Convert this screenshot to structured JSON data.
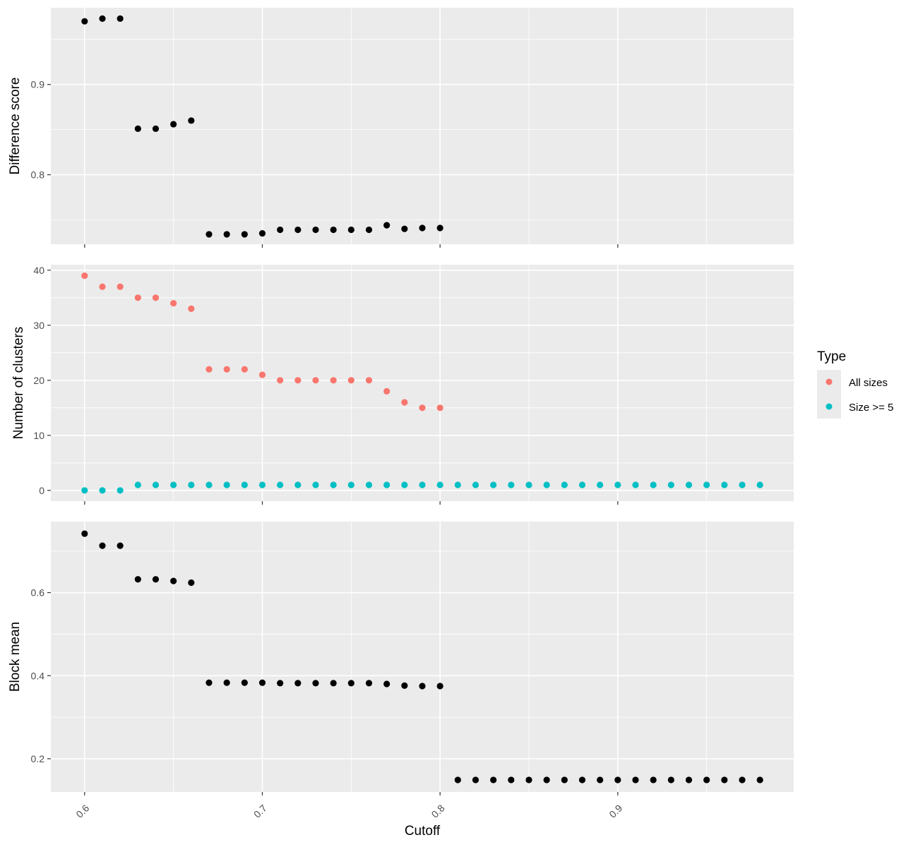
{
  "chart_data": {
    "type": "scatter",
    "x_label": "Cutoff",
    "x_ticks": [
      "0.6",
      "0.7",
      "0.8",
      "0.9"
    ],
    "xlim": [
      0.581,
      0.999
    ],
    "panels": [
      {
        "id": "difference",
        "ylabel": "Difference score",
        "ylim": [
          0.723,
          0.985
        ],
        "yticks": [
          "0.8",
          "0.9"
        ],
        "series": [
          {
            "color": "#000000",
            "points": [
              [
                0.6,
                0.97
              ],
              [
                0.61,
                0.973
              ],
              [
                0.62,
                0.973
              ],
              [
                0.63,
                0.851
              ],
              [
                0.64,
                0.851
              ],
              [
                0.65,
                0.856
              ],
              [
                0.66,
                0.86
              ],
              [
                0.67,
                0.734
              ],
              [
                0.68,
                0.734
              ],
              [
                0.69,
                0.734
              ],
              [
                0.7,
                0.735
              ],
              [
                0.71,
                0.739
              ],
              [
                0.72,
                0.739
              ],
              [
                0.73,
                0.739
              ],
              [
                0.74,
                0.739
              ],
              [
                0.75,
                0.739
              ],
              [
                0.76,
                0.739
              ],
              [
                0.77,
                0.744
              ],
              [
                0.78,
                0.74
              ],
              [
                0.79,
                0.741
              ],
              [
                0.8,
                0.741
              ]
            ]
          }
        ]
      },
      {
        "id": "clusters",
        "ylabel": "Number of clusters",
        "ylim": [
          -1.95,
          41.0
        ],
        "yticks": [
          "0",
          "10",
          "20",
          "30",
          "40"
        ],
        "series": [
          {
            "name": "All sizes",
            "color": "#F8766D",
            "points": [
              [
                0.6,
                39
              ],
              [
                0.61,
                37
              ],
              [
                0.62,
                37
              ],
              [
                0.63,
                35
              ],
              [
                0.64,
                35
              ],
              [
                0.65,
                34
              ],
              [
                0.66,
                33
              ],
              [
                0.67,
                22
              ],
              [
                0.68,
                22
              ],
              [
                0.69,
                22
              ],
              [
                0.7,
                21
              ],
              [
                0.71,
                20
              ],
              [
                0.72,
                20
              ],
              [
                0.73,
                20
              ],
              [
                0.74,
                20
              ],
              [
                0.75,
                20
              ],
              [
                0.76,
                20
              ],
              [
                0.77,
                18
              ],
              [
                0.78,
                16
              ],
              [
                0.79,
                15
              ],
              [
                0.8,
                15
              ]
            ]
          },
          {
            "name": "Size >= 5",
            "color": "#00BFC4",
            "points": [
              [
                0.6,
                0
              ],
              [
                0.61,
                0
              ],
              [
                0.62,
                0
              ],
              [
                0.63,
                1
              ],
              [
                0.64,
                1
              ],
              [
                0.65,
                1
              ],
              [
                0.66,
                1
              ],
              [
                0.67,
                1
              ],
              [
                0.68,
                1
              ],
              [
                0.69,
                1
              ],
              [
                0.7,
                1
              ],
              [
                0.71,
                1
              ],
              [
                0.72,
                1
              ],
              [
                0.73,
                1
              ],
              [
                0.74,
                1
              ],
              [
                0.75,
                1
              ],
              [
                0.76,
                1
              ],
              [
                0.77,
                1
              ],
              [
                0.78,
                1
              ],
              [
                0.79,
                1
              ],
              [
                0.8,
                1
              ],
              [
                0.81,
                1
              ],
              [
                0.82,
                1
              ],
              [
                0.83,
                1
              ],
              [
                0.84,
                1
              ],
              [
                0.85,
                1
              ],
              [
                0.86,
                1
              ],
              [
                0.87,
                1
              ],
              [
                0.88,
                1
              ],
              [
                0.89,
                1
              ],
              [
                0.9,
                1
              ],
              [
                0.91,
                1
              ],
              [
                0.92,
                1
              ],
              [
                0.93,
                1
              ],
              [
                0.94,
                1
              ],
              [
                0.95,
                1
              ],
              [
                0.96,
                1
              ],
              [
                0.97,
                1
              ],
              [
                0.98,
                1
              ]
            ]
          }
        ]
      },
      {
        "id": "blockmean",
        "ylabel": "Block mean",
        "ylim": [
          0.12,
          0.771
        ],
        "yticks": [
          "0.2",
          "0.4",
          "0.6"
        ],
        "series": [
          {
            "color": "#000000",
            "points": [
              [
                0.6,
                0.742
              ],
              [
                0.61,
                0.713
              ],
              [
                0.62,
                0.713
              ],
              [
                0.63,
                0.632
              ],
              [
                0.64,
                0.632
              ],
              [
                0.65,
                0.628
              ],
              [
                0.66,
                0.624
              ],
              [
                0.67,
                0.383
              ],
              [
                0.68,
                0.383
              ],
              [
                0.69,
                0.383
              ],
              [
                0.7,
                0.383
              ],
              [
                0.71,
                0.382
              ],
              [
                0.72,
                0.382
              ],
              [
                0.73,
                0.382
              ],
              [
                0.74,
                0.382
              ],
              [
                0.75,
                0.382
              ],
              [
                0.76,
                0.382
              ],
              [
                0.77,
                0.38
              ],
              [
                0.78,
                0.376
              ],
              [
                0.79,
                0.375
              ],
              [
                0.8,
                0.375
              ],
              [
                0.81,
                0.149
              ],
              [
                0.82,
                0.149
              ],
              [
                0.83,
                0.149
              ],
              [
                0.84,
                0.149
              ],
              [
                0.85,
                0.149
              ],
              [
                0.86,
                0.149
              ],
              [
                0.87,
                0.149
              ],
              [
                0.88,
                0.149
              ],
              [
                0.89,
                0.149
              ],
              [
                0.9,
                0.149
              ],
              [
                0.91,
                0.149
              ],
              [
                0.92,
                0.149
              ],
              [
                0.93,
                0.149
              ],
              [
                0.94,
                0.149
              ],
              [
                0.95,
                0.149
              ],
              [
                0.96,
                0.149
              ],
              [
                0.97,
                0.149
              ],
              [
                0.98,
                0.149
              ]
            ]
          }
        ]
      }
    ],
    "legend": {
      "title": "Type",
      "placement": "right",
      "items": [
        {
          "label": "All sizes",
          "color": "#F8766D"
        },
        {
          "label": "Size >= 5",
          "color": "#00BFC4"
        }
      ]
    }
  }
}
